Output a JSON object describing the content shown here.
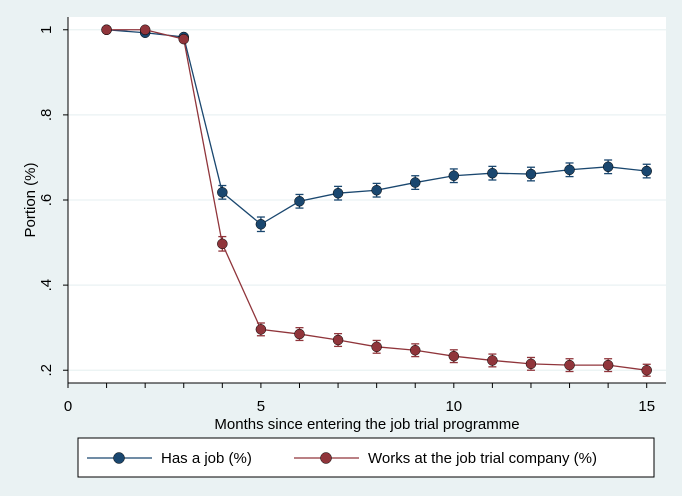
{
  "chart_data": {
    "type": "line",
    "title": "",
    "xlabel": "Months since entering the job trial programme",
    "ylabel": "Portion (%)",
    "xlim": [
      0,
      15.5
    ],
    "ylim": [
      0.17,
      1.03
    ],
    "x_ticks": [
      0,
      5,
      10,
      15
    ],
    "x_tick_labels": [
      "0",
      "5",
      "10",
      "15"
    ],
    "y_ticks": [
      0.2,
      0.4,
      0.6,
      0.8,
      1.0
    ],
    "y_tick_labels": [
      ".2",
      ".4",
      ".6",
      ".8",
      "1"
    ],
    "grid": "horizontal",
    "legend_position": "bottom",
    "x": [
      1,
      2,
      3,
      4,
      5,
      6,
      7,
      8,
      9,
      10,
      11,
      12,
      13,
      14,
      15
    ],
    "series": [
      {
        "name": "Has a job (%)",
        "color": "#1a476f",
        "values": [
          1.0,
          0.993,
          0.983,
          0.618,
          0.543,
          0.597,
          0.616,
          0.623,
          0.641,
          0.657,
          0.663,
          0.661,
          0.671,
          0.678,
          0.668
        ],
        "ci_low": [
          1.0,
          0.991,
          0.979,
          0.602,
          0.526,
          0.581,
          0.6,
          0.607,
          0.625,
          0.641,
          0.647,
          0.645,
          0.655,
          0.662,
          0.652
        ],
        "ci_high": [
          1.0,
          0.995,
          0.987,
          0.634,
          0.56,
          0.613,
          0.632,
          0.639,
          0.657,
          0.673,
          0.679,
          0.677,
          0.687,
          0.694,
          0.684
        ]
      },
      {
        "name": "Works at the job trial company (%)",
        "color": "#90353b",
        "values": [
          1.0,
          1.0,
          0.978,
          0.497,
          0.296,
          0.285,
          0.271,
          0.255,
          0.247,
          0.233,
          0.223,
          0.215,
          0.212,
          0.212,
          0.2
        ],
        "ci_low": [
          1.0,
          1.0,
          0.974,
          0.48,
          0.281,
          0.27,
          0.256,
          0.24,
          0.232,
          0.218,
          0.208,
          0.2,
          0.197,
          0.197,
          0.186
        ],
        "ci_high": [
          1.0,
          1.0,
          0.982,
          0.514,
          0.311,
          0.3,
          0.286,
          0.27,
          0.262,
          0.248,
          0.238,
          0.23,
          0.227,
          0.227,
          0.214
        ]
      }
    ],
    "colors": {
      "background": "#eaf2f3",
      "plot_background": "#ffffff",
      "grid": "#eaf2f3"
    }
  }
}
